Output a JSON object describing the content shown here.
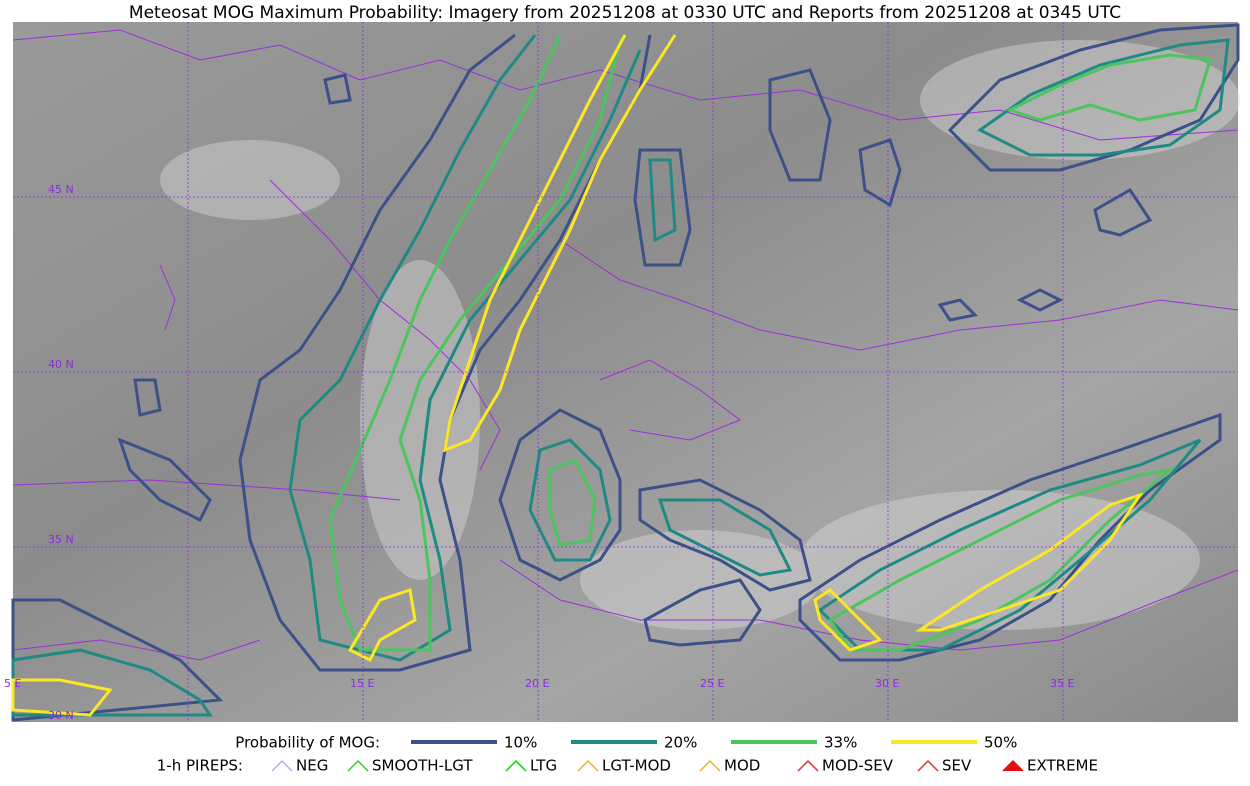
{
  "header": {
    "title": "Meteosat MOG Maximum Probability: Imagery from 20251208 at 0330 UTC and Reports from 20251208 at 0345 UTC"
  },
  "map": {
    "lat_labels": [
      "45 N",
      "40 N",
      "35 N",
      "30 N"
    ],
    "lon_labels": [
      "5 E",
      "15 E",
      "20 E",
      "25 E",
      "30 E",
      "35 E"
    ]
  },
  "legend": {
    "title": "Probability of MOG:",
    "levels": [
      {
        "label": "10%",
        "color": "#3b5188"
      },
      {
        "label": "20%",
        "color": "#1f8a84"
      },
      {
        "label": "33%",
        "color": "#4dc55f"
      },
      {
        "label": "50%",
        "color": "#fde725"
      }
    ]
  },
  "pireps": {
    "title": "1-h PIREPS:",
    "items": [
      {
        "label": "NEG",
        "color": "#b0b0f0"
      },
      {
        "label": "SMOOTH-LGT",
        "color": "#33cc33"
      },
      {
        "label": "LTG",
        "color": "#00dd00"
      },
      {
        "label": "LGT-MOD",
        "color": "#f0b030"
      },
      {
        "label": "MOD",
        "color": "#f0b030"
      },
      {
        "label": "MOD-SEV",
        "color": "#e03030"
      },
      {
        "label": "SEV",
        "color": "#e03030"
      },
      {
        "label": "EXTREME",
        "color": "#e01010"
      }
    ]
  }
}
